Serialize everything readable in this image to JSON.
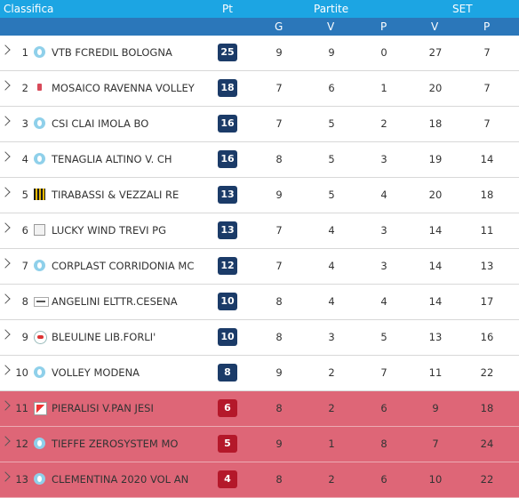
{
  "header": {
    "classifica": "Classifica",
    "pt": "Pt",
    "partite": "Partite",
    "set": "SET",
    "g": "G",
    "v": "V",
    "p": "P",
    "set_v": "V",
    "set_p": "P"
  },
  "rows": [
    {
      "pos": "1",
      "team": "VTB FCREDIL BOLOGNA",
      "logo": "water-drop-icon",
      "pt": "25",
      "g": "9",
      "v": "9",
      "p": "0",
      "sv": "27",
      "sp": "7",
      "relegation": false
    },
    {
      "pos": "2",
      "team": "MOSAICO RAVENNA VOLLEY",
      "logo": "shield-logo-icon",
      "pt": "18",
      "g": "7",
      "v": "6",
      "p": "1",
      "sv": "20",
      "sp": "7",
      "relegation": false
    },
    {
      "pos": "3",
      "team": "CSI CLAI IMOLA BO",
      "logo": "water-drop-icon",
      "pt": "16",
      "g": "7",
      "v": "5",
      "p": "2",
      "sv": "18",
      "sp": "7",
      "relegation": false
    },
    {
      "pos": "4",
      "team": "TENAGLIA ALTINO V. CH",
      "logo": "water-drop-icon",
      "pt": "16",
      "g": "8",
      "v": "5",
      "p": "3",
      "sv": "19",
      "sp": "14",
      "relegation": false
    },
    {
      "pos": "5",
      "team": "TIRABASSI & VEZZALI RE",
      "logo": "striped-logo-icon",
      "pt": "13",
      "g": "9",
      "v": "5",
      "p": "4",
      "sv": "20",
      "sp": "18",
      "relegation": false
    },
    {
      "pos": "6",
      "team": "LUCKY WIND TREVI PG",
      "logo": "broken-image-icon",
      "pt": "13",
      "g": "7",
      "v": "4",
      "p": "3",
      "sv": "14",
      "sp": "11",
      "relegation": false
    },
    {
      "pos": "7",
      "team": "CORPLAST CORRIDONIA MC",
      "logo": "water-drop-icon",
      "pt": "12",
      "g": "7",
      "v": "4",
      "p": "3",
      "sv": "14",
      "sp": "13",
      "relegation": false
    },
    {
      "pos": "8",
      "team": "ANGELINI ELTTR.CESENA",
      "logo": "flag-logo-icon",
      "pt": "10",
      "g": "8",
      "v": "4",
      "p": "4",
      "sv": "14",
      "sp": "17",
      "relegation": false
    },
    {
      "pos": "9",
      "team": "BLEULINE LIB.FORLI'",
      "logo": "badge-logo-icon",
      "pt": "10",
      "g": "8",
      "v": "3",
      "p": "5",
      "sv": "13",
      "sp": "16",
      "relegation": false
    },
    {
      "pos": "10",
      "team": "VOLLEY MODENA",
      "logo": "water-drop-icon",
      "pt": "8",
      "g": "9",
      "v": "2",
      "p": "7",
      "sv": "11",
      "sp": "22",
      "relegation": false
    },
    {
      "pos": "11",
      "team": "PIERALISI V.PAN JESI",
      "logo": "card-logo-icon",
      "pt": "6",
      "g": "8",
      "v": "2",
      "p": "6",
      "sv": "9",
      "sp": "18",
      "relegation": true
    },
    {
      "pos": "12",
      "team": "TIEFFE ZEROSYSTEM MO",
      "logo": "water-drop-icon",
      "pt": "5",
      "g": "9",
      "v": "1",
      "p": "8",
      "sv": "7",
      "sp": "24",
      "relegation": true
    },
    {
      "pos": "13",
      "team": "CLEMENTINA 2020 VOL AN",
      "logo": "water-drop-icon",
      "pt": "4",
      "g": "8",
      "v": "2",
      "p": "6",
      "sv": "10",
      "sp": "22",
      "relegation": true
    }
  ],
  "colors": {
    "header_top": "#1ca5e3",
    "header_sub": "#2b77ba",
    "points_badge": "#1b3b68",
    "points_badge_relegation": "#b4182a",
    "relegation_row": "#de6677"
  }
}
